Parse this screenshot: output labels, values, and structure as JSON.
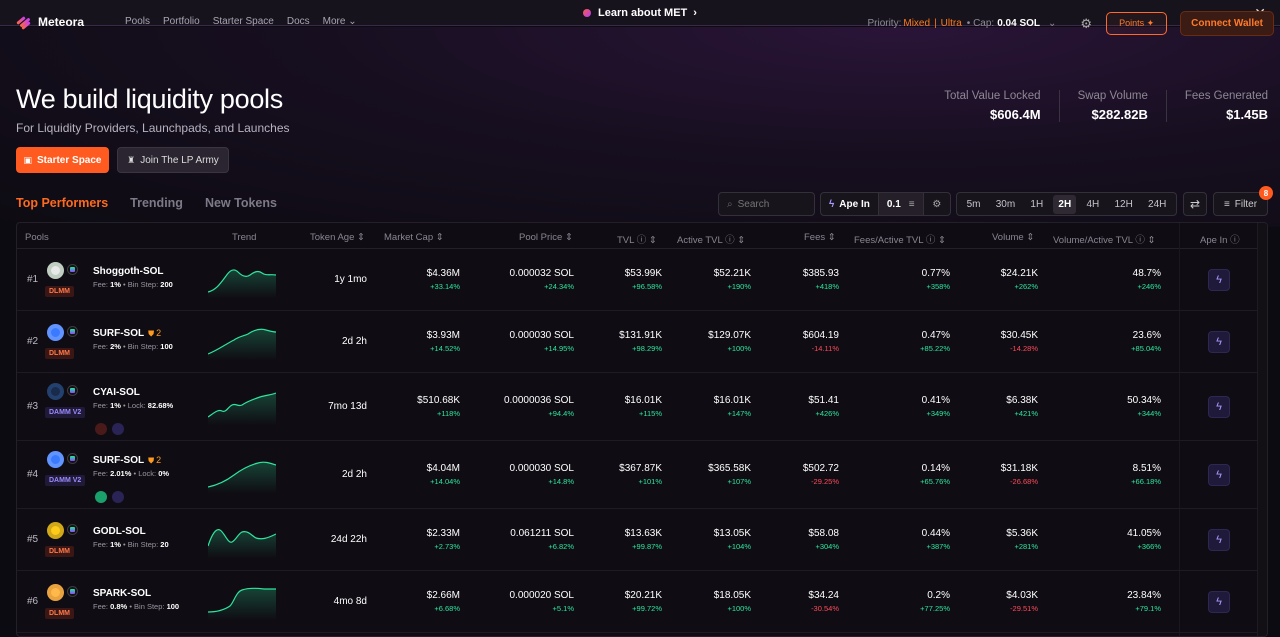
{
  "banner": {
    "text": "Learn about MET",
    "close": "✕"
  },
  "nav": {
    "brand": "Meteora",
    "links": [
      "Pools",
      "Portfolio",
      "Starter Space",
      "Docs",
      "More"
    ],
    "priority_label": "Priority:",
    "priority_mixed": "Mixed",
    "priority_sep": "|",
    "priority_ultra": "Ultra",
    "cap_label": "• Cap:",
    "cap_value": "0.04 SOL",
    "points": "Points",
    "connect": "Connect Wallet"
  },
  "hero": {
    "title": "We build liquidity pools",
    "subtitle": "For Liquidity Providers, Launchpads, and Launches",
    "starter_button": "Starter Space",
    "lp_button": "Join The LP Army"
  },
  "stats": [
    {
      "label": "Total Value Locked",
      "value": "$606.4M"
    },
    {
      "label": "Swap Volume",
      "value": "$282.82B"
    },
    {
      "label": "Fees Generated",
      "value": "$1.45B"
    }
  ],
  "tabs": [
    "Top Performers",
    "Trending",
    "New Tokens"
  ],
  "toolbar": {
    "search_placeholder": "Search",
    "ape_label": "Ape In",
    "ape_amount": "0.1",
    "timeframes": [
      "5m",
      "30m",
      "1H",
      "2H",
      "4H",
      "12H",
      "24H"
    ],
    "selected_timeframe": "2H",
    "filter": "Filter",
    "filter_count": "8"
  },
  "columns": {
    "pools": "Pools",
    "trend": "Trend",
    "token_age": "Token Age",
    "market_cap": "Market Cap",
    "pool_price": "Pool Price",
    "tvl": "TVL",
    "active_tvl": "Active TVL",
    "fees": "Fees",
    "fees_active_tvl": "Fees/Active TVL",
    "volume": "Volume",
    "volume_active_tvl": "Volume/Active TVL",
    "ape_in": "Ape In"
  },
  "rows": [
    {
      "rank": "#1",
      "pair": "Shoggoth-SOL",
      "warn": "",
      "fee_label": "Fee:",
      "fee": "1%",
      "extra_label": "• Bin Step:",
      "extra": "200",
      "badge": "DLMM",
      "age": "1y 1mo",
      "mcap": "$4.36M",
      "mcap_chg": "+33.14%",
      "price": "0.000032 SOL",
      "price_chg": "+24.34%",
      "tvl": "$53.99K",
      "tvl_chg": "+96.58%",
      "atvl": "$52.21K",
      "atvl_chg": "+190%",
      "fees": "$385.93",
      "fees_chg": "+418%",
      "fatvl": "0.77%",
      "fatvl_chg": "+358%",
      "vol": "$24.21K",
      "vol_chg": "+262%",
      "vatvl": "48.7%",
      "vatvl_chg": "+246%"
    },
    {
      "rank": "#2",
      "pair": "SURF-SOL",
      "warn": "2",
      "fee_label": "Fee:",
      "fee": "2%",
      "extra_label": "• Bin Step:",
      "extra": "100",
      "badge": "DLMM",
      "age": "2d 2h",
      "mcap": "$3.93M",
      "mcap_chg": "+14.52%",
      "price": "0.000030 SOL",
      "price_chg": "+14.95%",
      "tvl": "$131.91K",
      "tvl_chg": "+98.29%",
      "atvl": "$129.07K",
      "atvl_chg": "+100%",
      "fees": "$604.19",
      "fees_chg": "-14.11%",
      "fatvl": "0.47%",
      "fatvl_chg": "+85.22%",
      "vol": "$30.45K",
      "vol_chg": "-14.28%",
      "vatvl": "23.6%",
      "vatvl_chg": "+85.04%"
    },
    {
      "rank": "#3",
      "pair": "CYAI-SOL",
      "warn": "",
      "fee_label": "Fee:",
      "fee": "1%",
      "extra_label": "• Lock:",
      "extra": "82.68%",
      "badge": "DAMM V2",
      "age": "7mo 13d",
      "mcap": "$510.68K",
      "mcap_chg": "+118%",
      "price": "0.0000036 SOL",
      "price_chg": "+94.4%",
      "tvl": "$16.01K",
      "tvl_chg": "+115%",
      "atvl": "$16.01K",
      "atvl_chg": "+147%",
      "fees": "$51.41",
      "fees_chg": "+426%",
      "fatvl": "0.41%",
      "fatvl_chg": "+349%",
      "vol": "$6.38K",
      "vol_chg": "+421%",
      "vatvl": "50.34%",
      "vatvl_chg": "+344%"
    },
    {
      "rank": "#4",
      "pair": "SURF-SOL",
      "warn": "2",
      "fee_label": "Fee:",
      "fee": "2.01%",
      "extra_label": "• Lock:",
      "extra": "0%",
      "badge": "DAMM V2",
      "age": "2d 2h",
      "mcap": "$4.04M",
      "mcap_chg": "+14.04%",
      "price": "0.000030 SOL",
      "price_chg": "+14.8%",
      "tvl": "$367.87K",
      "tvl_chg": "+101%",
      "atvl": "$365.58K",
      "atvl_chg": "+107%",
      "fees": "$502.72",
      "fees_chg": "-29.25%",
      "fatvl": "0.14%",
      "fatvl_chg": "+65.76%",
      "vol": "$31.18K",
      "vol_chg": "-26.68%",
      "vatvl": "8.51%",
      "vatvl_chg": "+66.18%"
    },
    {
      "rank": "#5",
      "pair": "GODL-SOL",
      "warn": "",
      "fee_label": "Fee:",
      "fee": "1%",
      "extra_label": "• Bin Step:",
      "extra": "20",
      "badge": "DLMM",
      "age": "24d 22h",
      "mcap": "$2.33M",
      "mcap_chg": "+2.73%",
      "price": "0.061211 SOL",
      "price_chg": "+6.82%",
      "tvl": "$13.63K",
      "tvl_chg": "+99.87%",
      "atvl": "$13.05K",
      "atvl_chg": "+104%",
      "fees": "$58.08",
      "fees_chg": "+304%",
      "fatvl": "0.44%",
      "fatvl_chg": "+387%",
      "vol": "$5.36K",
      "vol_chg": "+281%",
      "vatvl": "41.05%",
      "vatvl_chg": "+366%"
    },
    {
      "rank": "#6",
      "pair": "SPARK-SOL",
      "warn": "",
      "fee_label": "Fee:",
      "fee": "0.8%",
      "extra_label": "• Bin Step:",
      "extra": "100",
      "badge": "DLMM",
      "age": "4mo 8d",
      "mcap": "$2.66M",
      "mcap_chg": "+6.68%",
      "price": "0.000020 SOL",
      "price_chg": "+5.1%",
      "tvl": "$20.21K",
      "tvl_chg": "+99.72%",
      "atvl": "$18.05K",
      "atvl_chg": "+100%",
      "fees": "$34.24",
      "fees_chg": "-30.54%",
      "fatvl": "0.2%",
      "fatvl_chg": "+77.25%",
      "vol": "$4.03K",
      "vol_chg": "-29.51%",
      "vatvl": "23.84%",
      "vatvl_chg": "+79.1%"
    }
  ],
  "colors": {
    "accent": "#ff5a1f",
    "positive": "#2ee59d",
    "negative": "#ff4a5a",
    "trend_line": "#2ee59d"
  }
}
